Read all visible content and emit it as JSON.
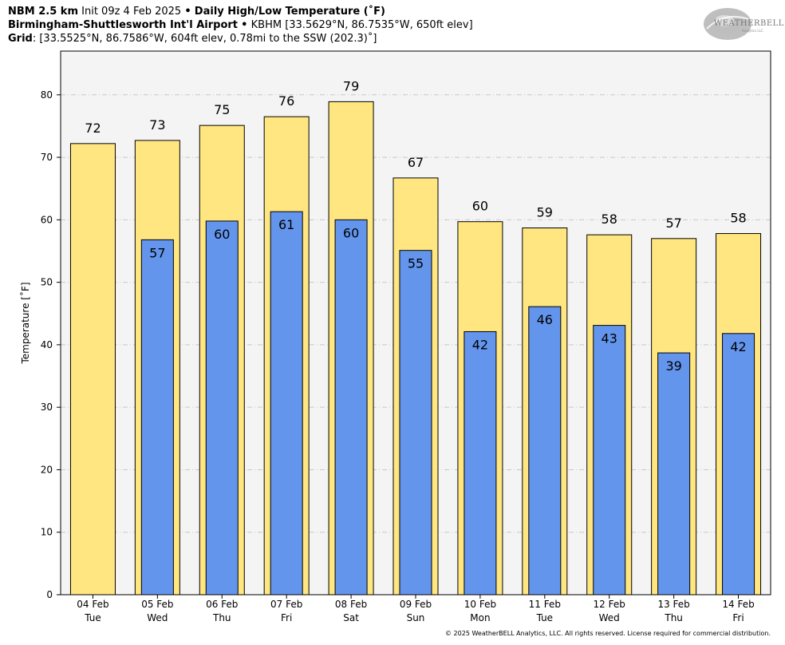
{
  "header": {
    "model": "NBM 2.5 km",
    "init": "Init 09z 4 Feb 2025",
    "sep1": "•",
    "product": "Daily High/Low Temperature (˚F)",
    "station": "Birmingham-Shuttlesworth Int'l Airport",
    "sep2": "•",
    "station_info": "KBHM [33.5629°N, 86.7535°W, 650ft elev]",
    "grid_label": "Grid",
    "grid_info": ": [33.5525°N, 86.7586°W, 604ft elev, 0.78mi to the SSW (202.3)˚]"
  },
  "logo": {
    "text": "WEATHERBELL",
    "sub": "Analytics LLC",
    "icon": "swirl-logo-icon"
  },
  "footer": "© 2025 WeatherBELL Analytics, LLC. All rights reserved. License required for commercial distribution.",
  "chart_data": {
    "type": "bar",
    "ylabel": "Temperature [˚F]",
    "ylim": [
      0,
      87
    ],
    "yticks": [
      0,
      10,
      20,
      30,
      40,
      50,
      60,
      70,
      80
    ],
    "grid": true,
    "categories": [
      {
        "date": "04 Feb",
        "day": "Tue"
      },
      {
        "date": "05 Feb",
        "day": "Wed"
      },
      {
        "date": "06 Feb",
        "day": "Thu"
      },
      {
        "date": "07 Feb",
        "day": "Fri"
      },
      {
        "date": "08 Feb",
        "day": "Sat"
      },
      {
        "date": "09 Feb",
        "day": "Sun"
      },
      {
        "date": "10 Feb",
        "day": "Mon"
      },
      {
        "date": "11 Feb",
        "day": "Tue"
      },
      {
        "date": "12 Feb",
        "day": "Wed"
      },
      {
        "date": "13 Feb",
        "day": "Thu"
      },
      {
        "date": "14 Feb",
        "day": "Fri"
      }
    ],
    "series": [
      {
        "color": "#ffe680",
        "values": [
          72.2,
          72.7,
          75.1,
          76.5,
          78.9,
          66.7,
          59.7,
          58.7,
          57.6,
          57.0,
          57.8
        ],
        "labels": [
          "72",
          "73",
          "75",
          "76",
          "79",
          "67",
          "60",
          "59",
          "58",
          "57",
          "58"
        ]
      },
      {
        "color": "#6495ed",
        "values": [
          null,
          56.8,
          59.8,
          61.3,
          60.0,
          55.1,
          42.1,
          46.1,
          43.1,
          38.7,
          41.8
        ],
        "labels": [
          null,
          "57",
          "60",
          "61",
          "60",
          "55",
          "42",
          "46",
          "43",
          "39",
          "42"
        ]
      }
    ],
    "plot_background": "#f4f4f4",
    "grid_color": "#c8c8c8"
  }
}
